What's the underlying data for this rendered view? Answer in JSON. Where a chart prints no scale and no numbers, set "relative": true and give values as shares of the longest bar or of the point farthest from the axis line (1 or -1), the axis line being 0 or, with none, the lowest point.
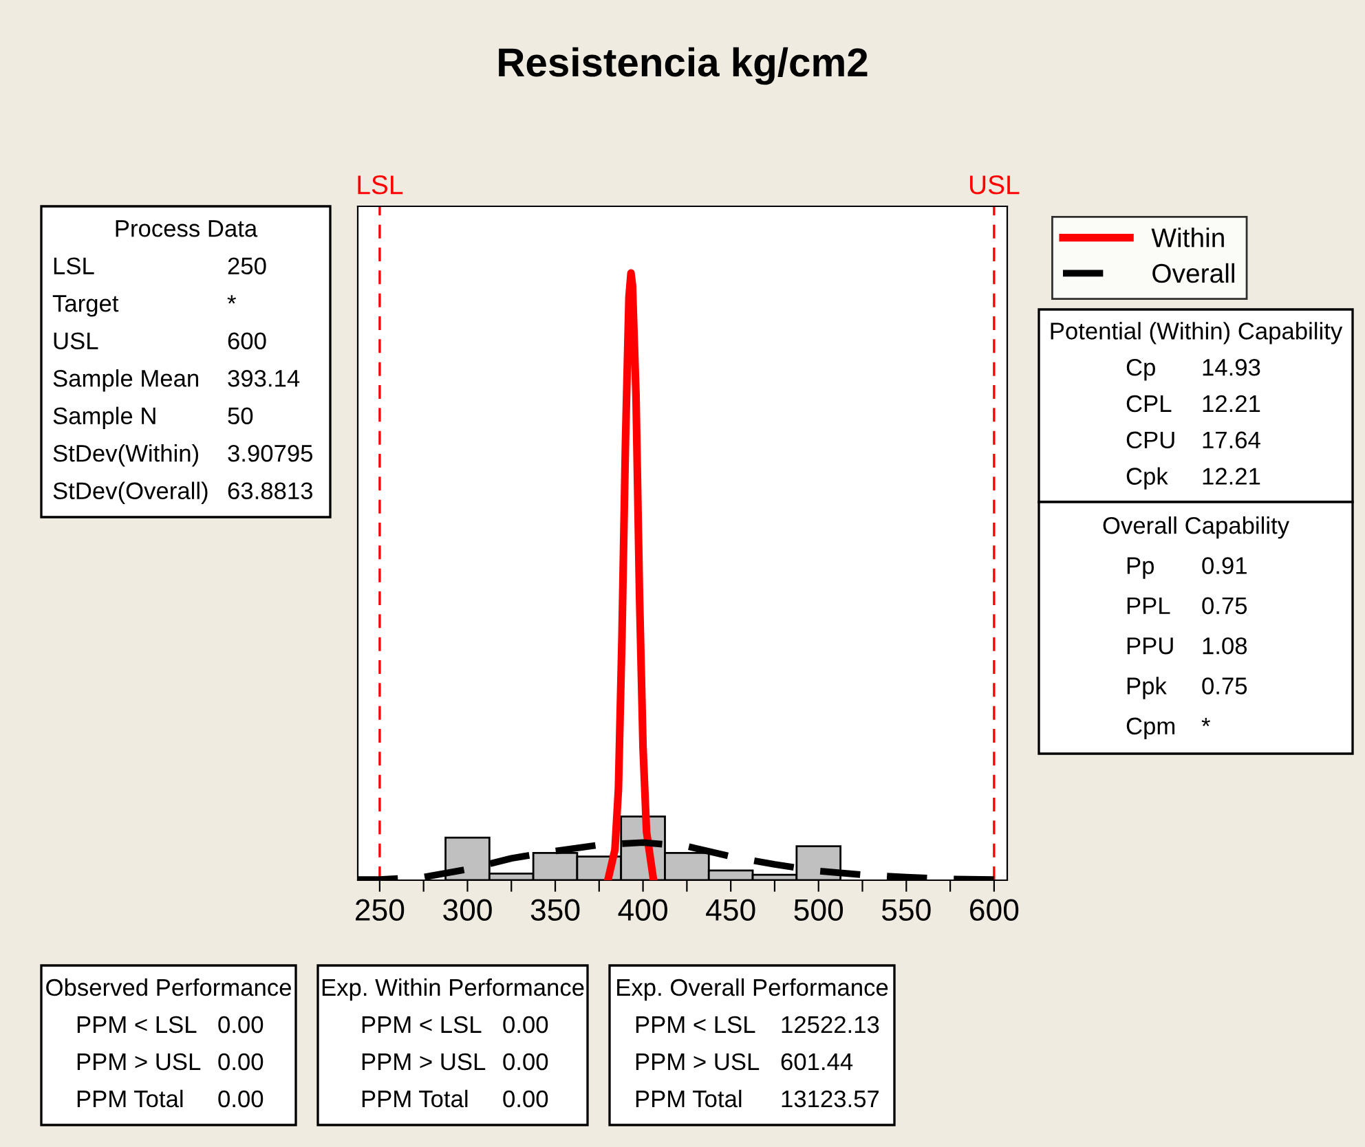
{
  "chart_data": {
    "type": "histogram",
    "title": "Resistencia kg/cm2",
    "relative": true,
    "color": "#c0c0c0",
    "bins": [
      287.5,
      312.5,
      337.5,
      362.5,
      387.5,
      412.5,
      437.5,
      462.5,
      487.5,
      512.5
    ],
    "values": [
      0.07,
      0.011,
      0.045,
      0.039,
      0.105,
      0.045,
      0.016,
      0.009,
      0.056
    ],
    "series": [
      {
        "name": "Within",
        "type": "line",
        "color": "#ff0000",
        "line_style": "solid",
        "x": [
          380,
          384,
          386,
          388,
          390,
          392,
          393.14,
          394,
          396,
          398,
          400,
          402,
          406
        ],
        "values": [
          0,
          0.05,
          0.15,
          0.4,
          0.72,
          0.96,
          1.0,
          0.98,
          0.8,
          0.47,
          0.22,
          0.08,
          0
        ]
      },
      {
        "name": "Overall",
        "type": "line",
        "color": "#000000",
        "line_style": "dashed",
        "x": [
          237.5,
          250,
          275,
          300,
          325,
          350,
          375,
          400,
          425,
          450,
          475,
          500,
          525,
          550,
          575,
          600,
          607.5
        ],
        "values": [
          0.001,
          0.001,
          0.005,
          0.018,
          0.036,
          0.048,
          0.058,
          0.062,
          0.056,
          0.039,
          0.026,
          0.015,
          0.009,
          0.005,
          0.002,
          0.001,
          0.001
        ]
      }
    ],
    "xlim": [
      237.5,
      607.5
    ],
    "xticks": [
      250,
      {
        "value": 275,
        "label": null
      },
      300,
      {
        "value": 325,
        "label": null
      },
      350,
      {
        "value": 375,
        "label": null
      },
      400,
      {
        "value": 425,
        "label": null
      },
      450,
      {
        "value": 475,
        "label": null
      },
      500,
      {
        "value": 525,
        "label": null
      },
      550,
      {
        "value": 575,
        "label": null
      },
      600
    ],
    "ref_lines": [
      {
        "axis": "x",
        "value": 250,
        "label": "LSL",
        "color": "#ff0000",
        "line_style": "dashed"
      },
      {
        "axis": "x",
        "value": 600,
        "label": "USL",
        "color": "#ff0000",
        "line_style": "dashed"
      }
    ],
    "legend": "top right",
    "grid": false,
    "annotations": [
      "Process Data\nLSL\t250\nTarget\t*\nUSL\t600\nSample Mean\t393.14\nSample N\t50\nStDev(Within)\t3.90795\nStDev(Overall)\t63.8813",
      "Potential (Within) Capability\nCp\t14.93\nCPL\t12.21\nCPU\t17.64\nCpk\t12.21",
      "Overall Capability\nPp\t0.91\nPPL\t0.75\nPPU\t1.08\nPpk\t0.75\nCpm\t*",
      "Observed Performance\nPPM < LSL\t0.00\nPPM > USL\t0.00\nPPM Total\t0.00",
      "Exp. Within Performance\nPPM < LSL\t0.00\nPPM > USL\t0.00\nPPM Total\t0.00",
      "Exp. Overall Performance\nPPM < LSL\t12522.13\nPPM > USL\t601.44\nPPM Total\t13123.57"
    ]
  }
}
